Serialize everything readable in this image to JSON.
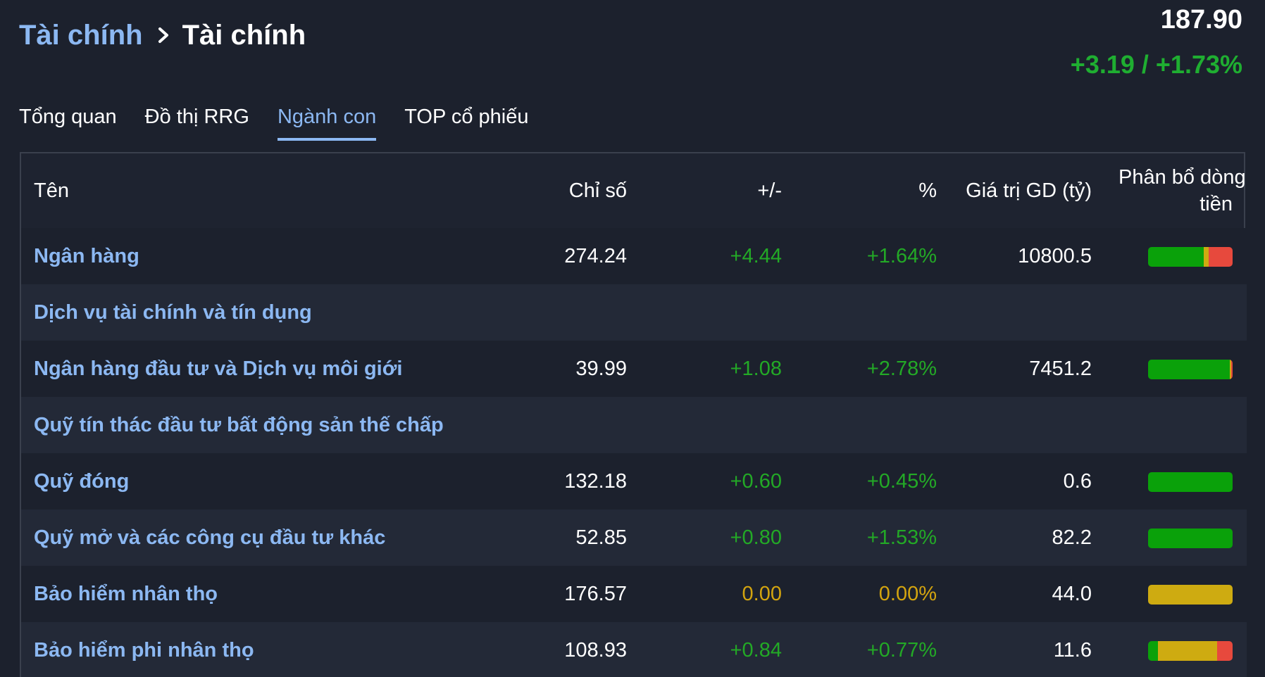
{
  "header": {
    "breadcrumb_parent": "Tài chính",
    "breadcrumb_current": "Tài chính",
    "index_value": "187.90",
    "index_change": "+3.19 / +1.73%"
  },
  "tabs": [
    {
      "label": "Tổng quan",
      "active": false
    },
    {
      "label": "Đồ thị RRG",
      "active": false
    },
    {
      "label": "Ngành con",
      "active": true
    },
    {
      "label": "TOP cổ phiếu",
      "active": false
    }
  ],
  "table": {
    "columns": {
      "name": "Tên",
      "index": "Chỉ số",
      "change": "+/-",
      "percent": "%",
      "value": "Giá trị GD (tỷ)",
      "flow_line1": "Phân bổ dòng",
      "flow_line2": "tiền"
    },
    "rows": [
      {
        "name": "Ngân hàng",
        "index": "274.24",
        "change": "+4.44",
        "percent": "+1.64%",
        "value": "10800.5",
        "trend": "pos",
        "flow": {
          "up": 0.66,
          "flat": 0.06,
          "down": 0.28
        }
      },
      {
        "name": "Dịch vụ tài chính và tín dụng",
        "index": "",
        "change": "",
        "percent": "",
        "value": "",
        "trend": "none",
        "flow": null
      },
      {
        "name": "Ngân hàng đầu tư và Dịch vụ môi giới",
        "index": "39.99",
        "change": "+1.08",
        "percent": "+2.78%",
        "value": "7451.2",
        "trend": "pos",
        "flow": {
          "up": 0.97,
          "flat": 0.01,
          "down": 0.02
        }
      },
      {
        "name": "Quỹ tín thác đầu tư bất động sản thế chấp",
        "index": "",
        "change": "",
        "percent": "",
        "value": "",
        "trend": "none",
        "flow": null
      },
      {
        "name": "Quỹ đóng",
        "index": "132.18",
        "change": "+0.60",
        "percent": "+0.45%",
        "value": "0.6",
        "trend": "pos",
        "flow": {
          "up": 1.0,
          "flat": 0.0,
          "down": 0.0
        }
      },
      {
        "name": "Quỹ mở và các công cụ đầu tư khác",
        "index": "52.85",
        "change": "+0.80",
        "percent": "+1.53%",
        "value": "82.2",
        "trend": "pos",
        "flow": {
          "up": 1.0,
          "flat": 0.0,
          "down": 0.0
        }
      },
      {
        "name": "Bảo hiểm nhân thọ",
        "index": "176.57",
        "change": "0.00",
        "percent": "0.00%",
        "value": "44.0",
        "trend": "neu",
        "flow": {
          "up": 0.0,
          "flat": 1.0,
          "down": 0.0
        }
      },
      {
        "name": "Bảo hiểm phi nhân thọ",
        "index": "108.93",
        "change": "+0.84",
        "percent": "+0.77%",
        "value": "11.6",
        "trend": "pos",
        "flow": {
          "up": 0.12,
          "flat": 0.7,
          "down": 0.18
        }
      }
    ]
  },
  "colors": {
    "link": "#8cb8f2",
    "positive": "#23a926",
    "neutral": "#d3a40f",
    "negative": "#e7493d"
  }
}
